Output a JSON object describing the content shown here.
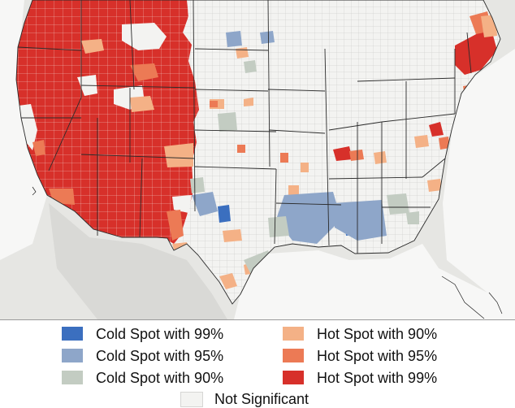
{
  "map": {
    "type": "county hot spot analysis map",
    "region": "contiguous United States",
    "basemap": "grey shaded relief",
    "colors": {
      "not_significant": "#f3f3f1",
      "borders": "#bdbdbd",
      "state_borders": "#2b2b2b",
      "basemap_land": "#e3e3e0",
      "water": "#f4f4f2"
    }
  },
  "legend": {
    "items": [
      {
        "key": "cold99",
        "label": "Cold Spot with 99%",
        "color": "#3b6fbf"
      },
      {
        "key": "cold95",
        "label": "Cold Spot with 95%",
        "color": "#8ea6c9"
      },
      {
        "key": "cold90",
        "label": "Cold Spot with 90%",
        "color": "#c3ccc2"
      },
      {
        "key": "hot90",
        "label": "Hot Spot with 90%",
        "color": "#f4b186"
      },
      {
        "key": "hot95",
        "label": "Hot Spot with 95%",
        "color": "#ec7a55"
      },
      {
        "key": "hot99",
        "label": "Hot Spot with 99%",
        "color": "#d7302a"
      },
      {
        "key": "notsig",
        "label": "Not Significant",
        "color": "#f3f3f1"
      }
    ]
  }
}
